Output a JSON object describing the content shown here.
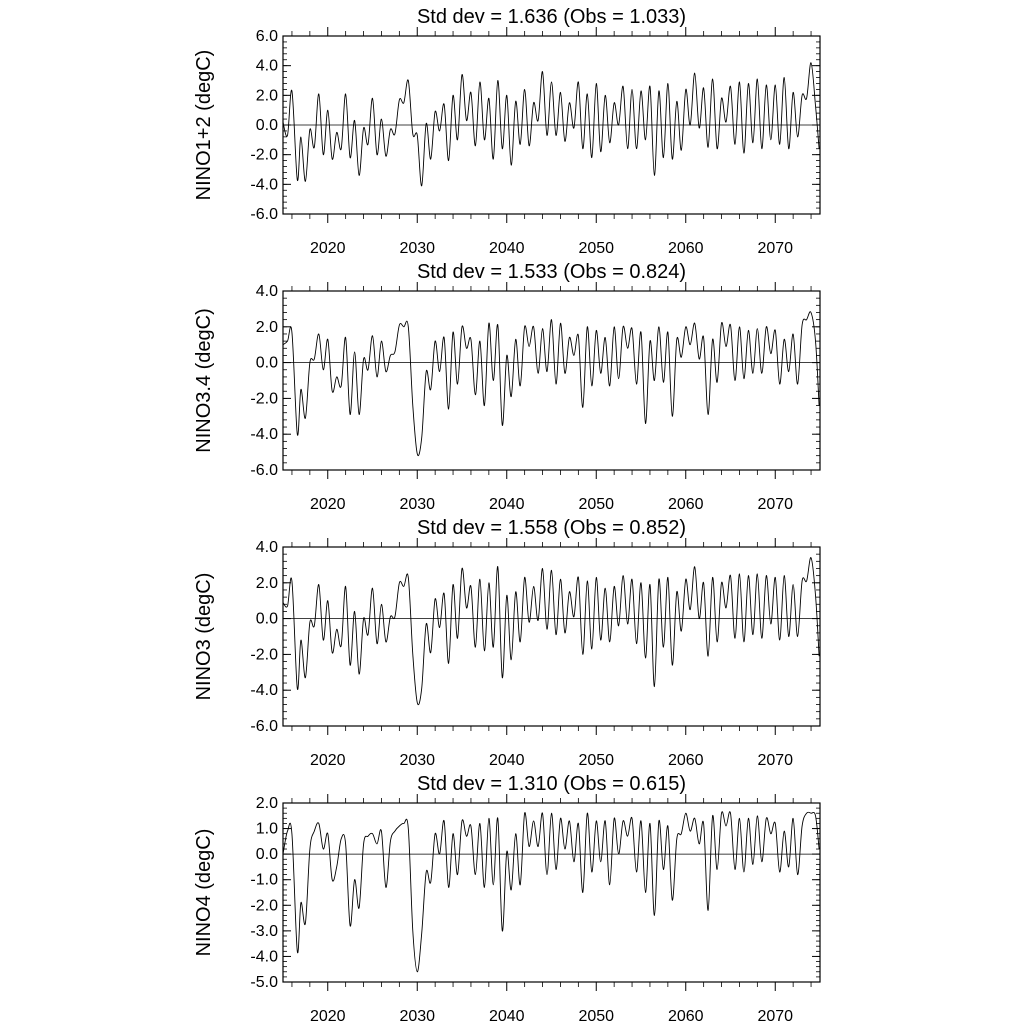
{
  "chart_data": [
    {
      "type": "line",
      "title": "Std dev = 1.636 (Obs = 1.033)",
      "ylabel": "NINO1+2 (degC)",
      "xlabel": "",
      "xlim": [
        2015,
        2075
      ],
      "ylim": [
        -6,
        6
      ],
      "xticks": [
        2020,
        2030,
        2040,
        2050,
        2060,
        2070
      ],
      "yticks": [
        "6.0",
        "4.0",
        "2.0",
        "0.0",
        "-2.0",
        "-4.0",
        "-6.0"
      ],
      "reference_line": 0,
      "grid": false,
      "x": [
        2015.0,
        2015.5,
        2016.0,
        2016.6,
        2017.0,
        2017.5,
        2018.0,
        2018.5,
        2019.0,
        2019.5,
        2020.0,
        2020.5,
        2021.0,
        2021.5,
        2022.0,
        2022.5,
        2023.0,
        2023.5,
        2024.0,
        2024.5,
        2025.0,
        2025.5,
        2026.0,
        2026.5,
        2027.0,
        2027.5,
        2028.0,
        2028.5,
        2029.0,
        2029.5,
        2030.0,
        2030.5,
        2031.0,
        2031.5,
        2032.0,
        2032.5,
        2033.0,
        2033.5,
        2034.0,
        2034.5,
        2035.0,
        2035.5,
        2036.0,
        2036.5,
        2037.0,
        2037.5,
        2038.0,
        2038.5,
        2039.0,
        2039.5,
        2040.0,
        2040.5,
        2041.0,
        2041.5,
        2042.0,
        2042.5,
        2043.0,
        2043.5,
        2044.0,
        2044.5,
        2045.0,
        2045.5,
        2046.0,
        2046.5,
        2047.0,
        2047.5,
        2048.0,
        2048.5,
        2049.0,
        2049.5,
        2050.0,
        2050.5,
        2051.0,
        2051.5,
        2052.0,
        2052.5,
        2053.0,
        2053.5,
        2054.0,
        2054.5,
        2055.0,
        2055.5,
        2056.0,
        2056.5,
        2057.0,
        2057.5,
        2058.0,
        2058.5,
        2059.0,
        2059.5,
        2060.0,
        2060.5,
        2061.0,
        2061.5,
        2062.0,
        2062.5,
        2063.0,
        2063.5,
        2064.0,
        2064.5,
        2065.0,
        2065.5,
        2066.0,
        2066.5,
        2067.0,
        2067.5,
        2068.0,
        2068.5,
        2069.0,
        2069.5,
        2070.0,
        2070.5,
        2071.0,
        2071.5,
        2072.0,
        2072.5,
        2073.0,
        2073.5,
        2074.0,
        2074.5,
        2074.9
      ],
      "y": [
        0.2,
        -0.7,
        2.3,
        -3.7,
        -0.8,
        -3.8,
        -0.3,
        -1.5,
        2.1,
        -2.0,
        1.0,
        -2.3,
        -0.5,
        -1.6,
        2.1,
        -2.2,
        0.3,
        -3.4,
        -0.2,
        -1.3,
        1.8,
        -2.0,
        0.4,
        -2.1,
        -0.3,
        -0.6,
        1.7,
        1.5,
        3.0,
        -0.6,
        -0.7,
        -4.1,
        0.1,
        -2.3,
        0.9,
        -0.4,
        1.4,
        -2.4,
        2.0,
        -1.0,
        3.4,
        0.3,
        2.2,
        -1.4,
        2.9,
        -1.0,
        1.8,
        -2.3,
        3.0,
        -1.6,
        2.0,
        -2.7,
        1.6,
        -1.3,
        2.4,
        -1.4,
        1.5,
        0.3,
        3.6,
        -0.7,
        2.9,
        -0.7,
        2.2,
        -1.1,
        1.5,
        -0.2,
        2.9,
        -1.6,
        2.1,
        -2.2,
        2.8,
        -1.8,
        2.0,
        -1.2,
        1.5,
        0.0,
        2.6,
        -1.6,
        2.4,
        -1.6,
        2.3,
        -1.0,
        2.6,
        -3.4,
        2.3,
        -2.2,
        2.8,
        -2.3,
        1.6,
        -1.7,
        2.4,
        0.0,
        3.5,
        -0.2,
        2.5,
        -1.5,
        3.1,
        -1.6,
        1.8,
        0.2,
        2.6,
        -1.3,
        2.9,
        -1.9,
        2.8,
        -1.2,
        3.1,
        -1.6,
        2.7,
        -1.0,
        2.7,
        -1.3,
        3.2,
        -1.6,
        2.2,
        -0.8,
        2.0,
        1.8,
        4.2,
        1.3,
        -1.6
      ]
    },
    {
      "type": "line",
      "title": "Std dev = 1.533 (Obs = 0.824)",
      "ylabel": "NINO3.4 (degC)",
      "xlabel": "",
      "xlim": [
        2015,
        2075
      ],
      "ylim": [
        -6,
        4
      ],
      "xticks": [
        2020,
        2030,
        2040,
        2050,
        2060,
        2070
      ],
      "yticks": [
        "4.0",
        "2.0",
        "0.0",
        "-2.0",
        "-4.0",
        "-6.0"
      ],
      "reference_line": 0,
      "grid": false,
      "x": [
        2015.0,
        2015.5,
        2016.0,
        2016.6,
        2017.0,
        2017.5,
        2018.0,
        2018.5,
        2019.0,
        2019.5,
        2020.0,
        2020.5,
        2021.0,
        2021.5,
        2022.0,
        2022.5,
        2023.0,
        2023.5,
        2024.0,
        2024.5,
        2025.0,
        2025.5,
        2026.0,
        2026.5,
        2027.0,
        2027.5,
        2028.0,
        2028.5,
        2029.0,
        2029.5,
        2030.0,
        2030.5,
        2031.0,
        2031.5,
        2032.0,
        2032.5,
        2033.0,
        2033.5,
        2034.0,
        2034.5,
        2035.0,
        2035.5,
        2036.0,
        2036.5,
        2037.0,
        2037.5,
        2038.0,
        2038.5,
        2039.0,
        2039.5,
        2040.0,
        2040.5,
        2041.0,
        2041.5,
        2042.0,
        2042.5,
        2043.0,
        2043.5,
        2044.0,
        2044.5,
        2045.0,
        2045.5,
        2046.0,
        2046.5,
        2047.0,
        2047.5,
        2048.0,
        2048.5,
        2049.0,
        2049.5,
        2050.0,
        2050.5,
        2051.0,
        2051.5,
        2052.0,
        2052.5,
        2053.0,
        2053.5,
        2054.0,
        2054.5,
        2055.0,
        2055.5,
        2056.0,
        2056.5,
        2057.0,
        2057.5,
        2058.0,
        2058.5,
        2059.0,
        2059.5,
        2060.0,
        2060.5,
        2061.0,
        2061.5,
        2062.0,
        2062.5,
        2063.0,
        2063.5,
        2064.0,
        2064.5,
        2065.0,
        2065.5,
        2066.0,
        2066.5,
        2067.0,
        2067.5,
        2068.0,
        2068.5,
        2069.0,
        2069.5,
        2070.0,
        2070.5,
        2071.0,
        2071.5,
        2072.0,
        2072.5,
        2073.0,
        2073.5,
        2074.0,
        2074.5,
        2074.9
      ],
      "y": [
        1.0,
        1.2,
        1.7,
        -4.0,
        -1.5,
        -3.1,
        0.0,
        0.2,
        1.6,
        -0.4,
        1.3,
        -1.6,
        -0.8,
        -1.3,
        1.4,
        -2.9,
        0.6,
        -2.9,
        0.2,
        -0.4,
        1.5,
        -0.8,
        1.2,
        -0.5,
        0.4,
        0.6,
        2.1,
        2.0,
        2.0,
        -2.4,
        -5.1,
        -4.2,
        -0.5,
        -1.5,
        1.2,
        -0.5,
        1.4,
        -2.6,
        1.7,
        -1.2,
        2.0,
        0.8,
        1.3,
        -1.8,
        1.2,
        -2.4,
        2.2,
        -1.0,
        2.1,
        -3.5,
        0.4,
        -1.9,
        1.3,
        -1.3,
        2.0,
        0.9,
        2.0,
        -0.6,
        1.9,
        -0.5,
        2.4,
        -1.2,
        2.2,
        -0.6,
        1.4,
        0.4,
        1.5,
        -2.5,
        2.0,
        -1.3,
        1.8,
        -0.6,
        1.4,
        -1.3,
        2.0,
        -0.9,
        2.0,
        0.8,
        1.9,
        -1.2,
        1.7,
        -3.4,
        1.2,
        -1.0,
        2.0,
        -1.1,
        1.7,
        -3.0,
        1.3,
        0.3,
        2.0,
        1.0,
        2.2,
        0.2,
        1.4,
        -2.9,
        1.3,
        -1.1,
        2.2,
        0.9,
        2.1,
        -1.0,
        2.0,
        -0.9,
        1.8,
        -0.6,
        1.9,
        -0.6,
        2.0,
        0.5,
        1.8,
        -1.2,
        1.3,
        -0.5,
        1.6,
        -1.2,
        2.1,
        2.4,
        2.8,
        1.2,
        -2.4
      ]
    },
    {
      "type": "line",
      "title": "Std dev = 1.558 (Obs = 0.852)",
      "ylabel": "NINO3 (degC)",
      "xlabel": "",
      "xlim": [
        2015,
        2075
      ],
      "ylim": [
        -6,
        4
      ],
      "xticks": [
        2020,
        2030,
        2040,
        2050,
        2060,
        2070
      ],
      "yticks": [
        "4.0",
        "2.0",
        "0.0",
        "-2.0",
        "-4.0",
        "-6.0"
      ],
      "reference_line": 0,
      "grid": false,
      "x": [
        2015.0,
        2015.5,
        2016.0,
        2016.6,
        2017.0,
        2017.5,
        2018.0,
        2018.5,
        2019.0,
        2019.5,
        2020.0,
        2020.5,
        2021.0,
        2021.5,
        2022.0,
        2022.5,
        2023.0,
        2023.5,
        2024.0,
        2024.5,
        2025.0,
        2025.5,
        2026.0,
        2026.5,
        2027.0,
        2027.5,
        2028.0,
        2028.5,
        2029.0,
        2029.5,
        2030.0,
        2030.5,
        2031.0,
        2031.5,
        2032.0,
        2032.5,
        2033.0,
        2033.5,
        2034.0,
        2034.5,
        2035.0,
        2035.5,
        2036.0,
        2036.5,
        2037.0,
        2037.5,
        2038.0,
        2038.5,
        2039.0,
        2039.5,
        2040.0,
        2040.5,
        2041.0,
        2041.5,
        2042.0,
        2042.5,
        2043.0,
        2043.5,
        2044.0,
        2044.5,
        2045.0,
        2045.5,
        2046.0,
        2046.5,
        2047.0,
        2047.5,
        2048.0,
        2048.5,
        2049.0,
        2049.5,
        2050.0,
        2050.5,
        2051.0,
        2051.5,
        2052.0,
        2052.5,
        2053.0,
        2053.5,
        2054.0,
        2054.5,
        2055.0,
        2055.5,
        2056.0,
        2056.5,
        2057.0,
        2057.5,
        2058.0,
        2058.5,
        2059.0,
        2059.5,
        2060.0,
        2060.5,
        2061.0,
        2061.5,
        2062.0,
        2062.5,
        2063.0,
        2063.5,
        2064.0,
        2064.5,
        2065.0,
        2065.5,
        2066.0,
        2066.5,
        2067.0,
        2067.5,
        2068.0,
        2068.5,
        2069.0,
        2069.5,
        2070.0,
        2070.5,
        2071.0,
        2071.5,
        2072.0,
        2072.5,
        2073.0,
        2073.5,
        2074.0,
        2074.5,
        2074.9
      ],
      "y": [
        0.9,
        0.7,
        2.1,
        -3.9,
        -1.2,
        -3.3,
        -0.2,
        -0.4,
        1.9,
        -1.2,
        1.0,
        -1.9,
        -0.6,
        -1.5,
        1.8,
        -2.6,
        0.4,
        -3.1,
        0.0,
        -0.9,
        1.7,
        -1.4,
        0.8,
        -1.3,
        0.1,
        0.1,
        2.0,
        1.8,
        2.3,
        -2.0,
        -4.7,
        -3.9,
        -0.3,
        -1.9,
        1.1,
        -0.5,
        1.4,
        -2.5,
        1.9,
        -1.1,
        2.8,
        0.6,
        1.8,
        -1.6,
        2.2,
        -1.8,
        2.0,
        -1.6,
        2.9,
        -3.3,
        1.3,
        -2.3,
        1.5,
        -1.3,
        2.3,
        -0.2,
        1.8,
        -0.1,
        2.8,
        -0.6,
        2.7,
        -0.9,
        2.2,
        -0.8,
        1.5,
        0.1,
        2.3,
        -2.0,
        2.1,
        -1.7,
        2.3,
        -1.2,
        1.7,
        -1.3,
        1.8,
        -0.4,
        2.4,
        -0.3,
        2.2,
        -1.4,
        2.0,
        -2.2,
        1.9,
        -3.8,
        2.2,
        -1.6,
        2.3,
        -2.6,
        1.5,
        -0.7,
        2.2,
        0.5,
        2.9,
        0.0,
        2.0,
        -2.1,
        2.3,
        -1.3,
        2.0,
        0.6,
        2.4,
        -1.1,
        2.5,
        -1.3,
        2.4,
        -0.9,
        2.5,
        -1.1,
        2.4,
        -0.3,
        2.3,
        -1.2,
        2.4,
        -1.0,
        1.9,
        -1.0,
        2.1,
        2.1,
        3.4,
        1.3,
        -2.1
      ]
    },
    {
      "type": "line",
      "title": "Std dev = 1.310 (Obs = 0.615)",
      "ylabel": "NINO4 (degC)",
      "xlabel": "",
      "xlim": [
        2015,
        2075
      ],
      "ylim": [
        -5,
        2
      ],
      "xticks": [
        2020,
        2030,
        2040,
        2050,
        2060,
        2070
      ],
      "yticks": [
        "2.0",
        "1.0",
        "0.0",
        "-1.0",
        "-2.0",
        "-3.0",
        "-4.0",
        "-5.0"
      ],
      "reference_line": 0,
      "grid": false,
      "x": [
        2015.0,
        2015.5,
        2016.0,
        2016.6,
        2017.0,
        2017.5,
        2018.0,
        2018.5,
        2019.0,
        2019.5,
        2020.0,
        2020.5,
        2021.0,
        2021.5,
        2022.0,
        2022.5,
        2023.0,
        2023.5,
        2024.0,
        2024.5,
        2025.0,
        2025.5,
        2026.0,
        2026.5,
        2027.0,
        2027.5,
        2028.0,
        2028.5,
        2029.0,
        2029.5,
        2030.0,
        2030.5,
        2031.0,
        2031.5,
        2032.0,
        2032.5,
        2033.0,
        2033.5,
        2034.0,
        2034.5,
        2035.0,
        2035.5,
        2036.0,
        2036.5,
        2037.0,
        2037.5,
        2038.0,
        2038.5,
        2039.0,
        2039.5,
        2040.0,
        2040.5,
        2041.0,
        2041.5,
        2042.0,
        2042.5,
        2043.0,
        2043.5,
        2044.0,
        2044.5,
        2045.0,
        2045.5,
        2046.0,
        2046.5,
        2047.0,
        2047.5,
        2048.0,
        2048.5,
        2049.0,
        2049.5,
        2050.0,
        2050.5,
        2051.0,
        2051.5,
        2052.0,
        2052.5,
        2053.0,
        2053.5,
        2054.0,
        2054.5,
        2055.0,
        2055.5,
        2056.0,
        2056.5,
        2057.0,
        2057.5,
        2058.0,
        2058.5,
        2059.0,
        2059.5,
        2060.0,
        2060.5,
        2061.0,
        2061.5,
        2062.0,
        2062.5,
        2063.0,
        2063.5,
        2064.0,
        2064.5,
        2065.0,
        2065.5,
        2066.0,
        2066.5,
        2067.0,
        2067.5,
        2068.0,
        2068.5,
        2069.0,
        2069.5,
        2070.0,
        2070.5,
        2071.0,
        2071.5,
        2072.0,
        2072.5,
        2073.0,
        2073.5,
        2074.0,
        2074.5,
        2074.9
      ],
      "y": [
        0.0,
        0.9,
        0.8,
        -3.8,
        -1.9,
        -2.7,
        0.2,
        0.9,
        1.2,
        0.2,
        0.8,
        -1.0,
        -0.5,
        0.6,
        0.4,
        -2.8,
        -1.0,
        -2.1,
        0.4,
        0.7,
        0.8,
        0.4,
        0.9,
        -1.3,
        0.5,
        0.9,
        1.1,
        1.2,
        1.0,
        -3.0,
        -4.6,
        -3.1,
        -0.7,
        -1.1,
        0.8,
        0.0,
        1.3,
        -1.3,
        0.8,
        -0.8,
        1.3,
        0.7,
        1.1,
        -0.8,
        1.2,
        -1.3,
        1.4,
        -1.2,
        1.4,
        -3.0,
        0.1,
        -1.4,
        0.8,
        -1.2,
        1.6,
        0.3,
        1.3,
        0.3,
        1.6,
        -0.8,
        1.6,
        -0.6,
        1.4,
        0.2,
        1.3,
        -0.3,
        1.2,
        -1.5,
        1.6,
        -0.7,
        1.3,
        -0.3,
        1.3,
        -1.2,
        1.4,
        0.0,
        1.3,
        0.7,
        1.4,
        -0.7,
        1.3,
        -1.5,
        1.2,
        -2.4,
        1.3,
        -0.6,
        1.1,
        -1.8,
        0.6,
        0.8,
        1.6,
        0.9,
        1.4,
        0.4,
        1.2,
        -2.2,
        1.5,
        -0.6,
        1.6,
        1.1,
        1.6,
        -0.6,
        1.4,
        -0.7,
        1.4,
        -0.4,
        1.5,
        -0.3,
        1.4,
        0.8,
        1.2,
        -0.7,
        0.9,
        -0.5,
        1.4,
        -0.8,
        1.1,
        1.6,
        1.6,
        1.5,
        0.2
      ]
    }
  ]
}
